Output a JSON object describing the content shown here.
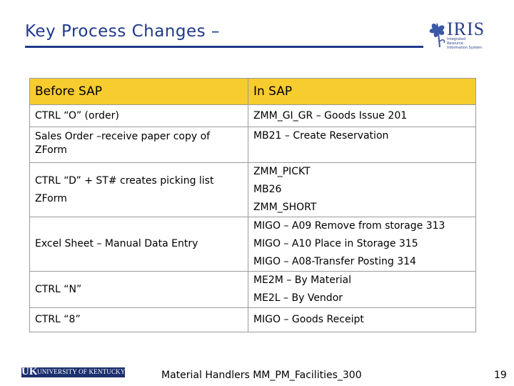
{
  "title": "Key Process Changes –",
  "logo": {
    "text": "IRIS",
    "subtitle": "Integrated Resource Information System"
  },
  "table": {
    "headers": [
      "Before SAP",
      "In SAP"
    ],
    "rows": [
      {
        "before": [
          "CTRL “O”  (order)"
        ],
        "after": [
          "ZMM_GI_GR – Goods Issue 201"
        ]
      },
      {
        "before": [
          "Sales Order –receive paper copy of ZForm"
        ],
        "after": [
          "MB21 – Create Reservation"
        ]
      },
      {
        "before": [
          "CTRL “D” + ST# creates picking list",
          "ZForm"
        ],
        "after": [
          "ZMM_PICKT",
          "MB26",
          "ZMM_SHORT"
        ]
      },
      {
        "before": [
          "Excel Sheet – Manual Data Entry"
        ],
        "after": [
          "MIGO – A09 Remove from storage 313",
          "MIGO – A10 Place in Storage 315",
          "MIGO – A08-Transfer Posting 314"
        ]
      },
      {
        "before": [
          "CTRL “N”"
        ],
        "after": [
          "ME2M – By Material",
          "ME2L – By Vendor"
        ]
      },
      {
        "before": [
          "CTRL “8”"
        ],
        "after": [
          "MIGO – Goods Receipt"
        ]
      }
    ]
  },
  "footer": {
    "logo_uk": "UK",
    "logo_name": "UNIVERSITY OF KENTUCKY",
    "text": "Material Handlers MM_PM_Facilities_300",
    "page": "19"
  }
}
